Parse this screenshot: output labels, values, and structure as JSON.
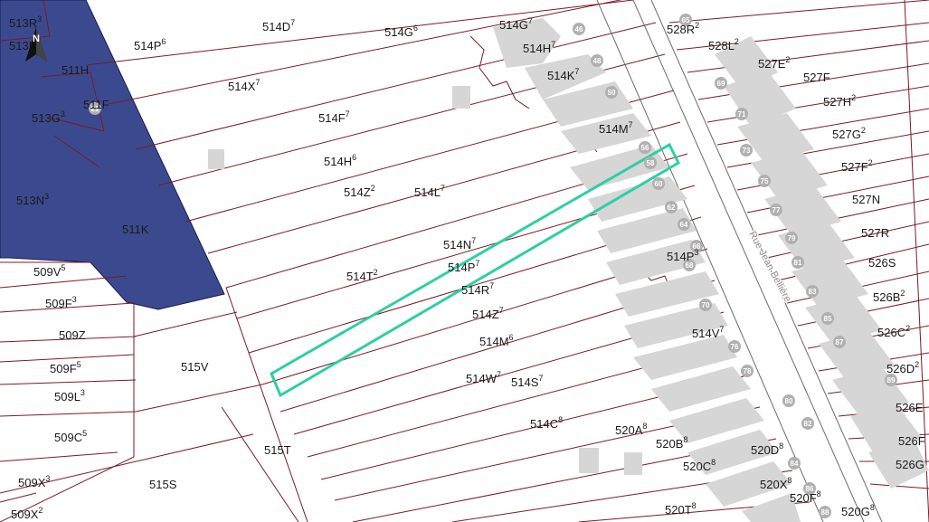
{
  "map": {
    "street_name": "Rue Jean Bellière",
    "north_arrow_icon": "north-arrow-icon",
    "house_number_icon": "house-number-badge-icon",
    "colors": {
      "selected_parcel_outline": "#2ecfa4",
      "highlighted_parcel_fill": "#3b4a8f",
      "parcel_line": "#7a1a24",
      "building_fill": "#d6d6d6",
      "house_badge": "#b0b0b0",
      "street_line": "#6b6b6b"
    },
    "lot_labels": [
      {
        "id": "513R",
        "text": "513R",
        "sup": "3"
      },
      {
        "id": "513B",
        "text": "513B",
        "sup": "3"
      },
      {
        "id": "511H",
        "text": "511H",
        "sup": ""
      },
      {
        "id": "513G",
        "text": "513G",
        "sup": "3"
      },
      {
        "id": "511F",
        "text": "511F",
        "sup": ""
      },
      {
        "id": "513N",
        "text": "513N",
        "sup": "3"
      },
      {
        "id": "511K",
        "text": "511K",
        "sup": ""
      },
      {
        "id": "514P-top",
        "text": "514P",
        "sup": "6"
      },
      {
        "id": "514D",
        "text": "514D",
        "sup": "7"
      },
      {
        "id": "514G-a",
        "text": "514G",
        "sup": "6"
      },
      {
        "id": "514G-b",
        "text": "514G",
        "sup": "7"
      },
      {
        "id": "514H-top",
        "text": "514H",
        "sup": "7"
      },
      {
        "id": "514K",
        "text": "514K",
        "sup": "7"
      },
      {
        "id": "514X",
        "text": "514X",
        "sup": "7"
      },
      {
        "id": "514F",
        "text": "514F",
        "sup": "7"
      },
      {
        "id": "514M-top",
        "text": "514M",
        "sup": "7"
      },
      {
        "id": "514H-mid",
        "text": "514H",
        "sup": "6"
      },
      {
        "id": "514Z-top",
        "text": "514Z",
        "sup": "2"
      },
      {
        "id": "514L",
        "text": "514L",
        "sup": "7"
      },
      {
        "id": "514N",
        "text": "514N",
        "sup": "7"
      },
      {
        "id": "514P-mid",
        "text": "514P",
        "sup": "7"
      },
      {
        "id": "514T",
        "text": "514T",
        "sup": "2"
      },
      {
        "id": "514R",
        "text": "514R",
        "sup": "7"
      },
      {
        "id": "514Z-mid",
        "text": "514Z",
        "sup": "7"
      },
      {
        "id": "514M-mid",
        "text": "514M",
        "sup": "6"
      },
      {
        "id": "514W",
        "text": "514W",
        "sup": "7"
      },
      {
        "id": "514S",
        "text": "514S",
        "sup": "7"
      },
      {
        "id": "514P-right",
        "text": "514P",
        "sup": "3"
      },
      {
        "id": "514V",
        "text": "514V",
        "sup": "7"
      },
      {
        "id": "514C",
        "text": "514C",
        "sup": "8"
      },
      {
        "id": "509V",
        "text": "509V",
        "sup": "5"
      },
      {
        "id": "509F-a",
        "text": "509F",
        "sup": "3"
      },
      {
        "id": "509Z",
        "text": "509Z",
        "sup": ""
      },
      {
        "id": "509F-b",
        "text": "509F",
        "sup": "5"
      },
      {
        "id": "509L",
        "text": "509L",
        "sup": "3"
      },
      {
        "id": "509C",
        "text": "509C",
        "sup": "5"
      },
      {
        "id": "509X-a",
        "text": "509X",
        "sup": "3"
      },
      {
        "id": "509X-b",
        "text": "509X",
        "sup": "2"
      },
      {
        "id": "515V",
        "text": "515V",
        "sup": ""
      },
      {
        "id": "515T",
        "text": "515T",
        "sup": ""
      },
      {
        "id": "515S",
        "text": "515S",
        "sup": ""
      },
      {
        "id": "520A",
        "text": "520A",
        "sup": "8"
      },
      {
        "id": "520B",
        "text": "520B",
        "sup": "8"
      },
      {
        "id": "520C",
        "text": "520C",
        "sup": "8"
      },
      {
        "id": "520D",
        "text": "520D",
        "sup": "8"
      },
      {
        "id": "520X",
        "text": "520X",
        "sup": "8"
      },
      {
        "id": "520F",
        "text": "520F",
        "sup": "8"
      },
      {
        "id": "520T",
        "text": "520T",
        "sup": "8"
      },
      {
        "id": "520G",
        "text": "520G",
        "sup": "8"
      },
      {
        "id": "528R",
        "text": "528R",
        "sup": "2"
      },
      {
        "id": "528L",
        "text": "528L",
        "sup": "2"
      },
      {
        "id": "527E",
        "text": "527E",
        "sup": "2"
      },
      {
        "id": "527F",
        "text": "527F",
        "sup": ""
      },
      {
        "id": "527H",
        "text": "527H",
        "sup": "2"
      },
      {
        "id": "527G",
        "text": "527G",
        "sup": "2"
      },
      {
        "id": "527F2",
        "text": "527F",
        "sup": "2"
      },
      {
        "id": "527N",
        "text": "527N",
        "sup": ""
      },
      {
        "id": "527R",
        "text": "527R",
        "sup": ""
      },
      {
        "id": "526S",
        "text": "526S",
        "sup": ""
      },
      {
        "id": "526B",
        "text": "526B",
        "sup": "2"
      },
      {
        "id": "526C",
        "text": "526C",
        "sup": "2"
      },
      {
        "id": "526D",
        "text": "526D",
        "sup": "2"
      },
      {
        "id": "526E",
        "text": "526E",
        "sup": ""
      },
      {
        "id": "526F",
        "text": "526F",
        "sup": ""
      },
      {
        "id": "526G",
        "text": "526G",
        "sup": ""
      }
    ],
    "house_numbers": [
      {
        "id": "h46",
        "text": "46"
      },
      {
        "id": "h48",
        "text": "48"
      },
      {
        "id": "h50",
        "text": "50"
      },
      {
        "id": "h56",
        "text": "56"
      },
      {
        "id": "h58",
        "text": "58"
      },
      {
        "id": "h60",
        "text": "60"
      },
      {
        "id": "h62",
        "text": "62"
      },
      {
        "id": "h64",
        "text": "64"
      },
      {
        "id": "h66",
        "text": "66"
      },
      {
        "id": "h68",
        "text": "68"
      },
      {
        "id": "h70",
        "text": "70"
      },
      {
        "id": "h76",
        "text": "76"
      },
      {
        "id": "h78",
        "text": "78"
      },
      {
        "id": "h80",
        "text": "80"
      },
      {
        "id": "h82",
        "text": "82"
      },
      {
        "id": "h84",
        "text": "84"
      },
      {
        "id": "h86",
        "text": "86"
      },
      {
        "id": "h88",
        "text": "88"
      },
      {
        "id": "h65",
        "text": "65"
      },
      {
        "id": "h69",
        "text": "69"
      },
      {
        "id": "h71",
        "text": "71"
      },
      {
        "id": "h73",
        "text": "73"
      },
      {
        "id": "h75",
        "text": "75"
      },
      {
        "id": "h77",
        "text": "77"
      },
      {
        "id": "h79",
        "text": "79"
      },
      {
        "id": "h81",
        "text": "81"
      },
      {
        "id": "h83",
        "text": "83"
      },
      {
        "id": "h85",
        "text": "85"
      },
      {
        "id": "h87",
        "text": "87"
      },
      {
        "id": "h89",
        "text": "89"
      },
      {
        "id": "h21",
        "text": "21"
      }
    ]
  }
}
